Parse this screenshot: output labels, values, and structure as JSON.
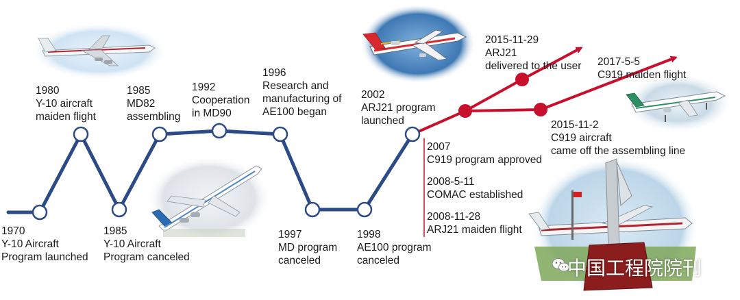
{
  "colors": {
    "line_blue": "#2c4a86",
    "node_fill": "#ffffff",
    "line_red": "#c8102e",
    "node_red": "#c8102e",
    "tick_red": "#c8102e"
  },
  "milestones": {
    "m1970": [
      "1970",
      "Y-10 Aircraft",
      "Program launched"
    ],
    "m1980": [
      "1980",
      "Y-10 aircraft",
      "maiden flight"
    ],
    "m1985c": [
      "1985",
      "Y-10 Aircraft",
      "Program canceled"
    ],
    "m1985a": [
      "1985",
      "MD82",
      "assembling"
    ],
    "m1992": [
      "1992",
      "Cooperation",
      "in MD90"
    ],
    "m1996": [
      "1996",
      "Research and",
      "manufacturing of",
      "AE100 began"
    ],
    "m1997": [
      "1997",
      "MD program",
      "canceled"
    ],
    "m1998": [
      "1998",
      "AE100 program",
      "canceled"
    ],
    "m2002": [
      "2002",
      "ARJ21 program",
      "launched"
    ],
    "m2007": [
      "2007",
      "C919 program approved"
    ],
    "m2008a": [
      "2008-5-11",
      "COMAC established"
    ],
    "m2008b": [
      "2008-11-28",
      "ARJ21 maiden flight"
    ],
    "m2015a": [
      "2015-11-29",
      "ARJ21",
      "delivered to the user"
    ],
    "m2015b": [
      "2015-11-2",
      "C919 aircraft",
      "came off the assembling line"
    ],
    "m2017": [
      "2017-5-5",
      "C919 maiden flight"
    ]
  },
  "photos": [
    "y10-aircraft-photo",
    "md82-aircraft-photo",
    "arj21-aircraft-photo",
    "c919-aircraft-photo",
    "y10-monument-photo"
  ],
  "watermark": {
    "text": "中国工程院院刊",
    "icon": "wechat-icon"
  }
}
